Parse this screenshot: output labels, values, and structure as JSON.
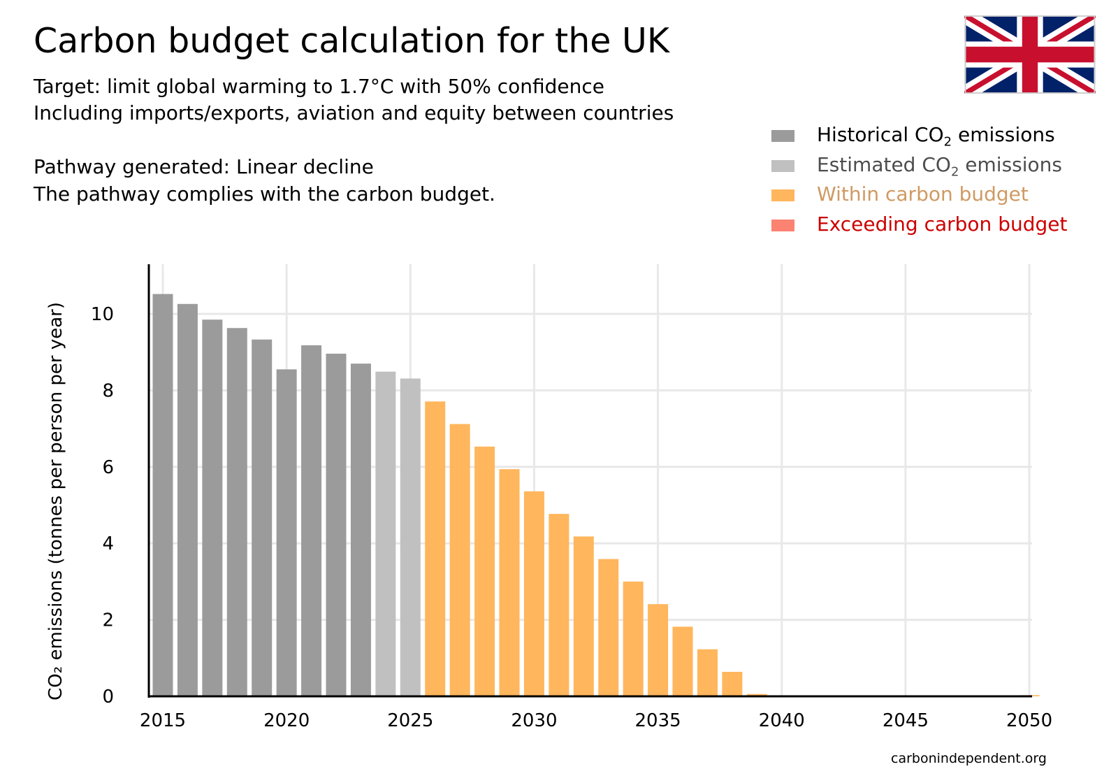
{
  "title": "Carbon budget calculation for the UK",
  "subtitle_lines": [
    "Target: limit global warming to 1.7°C with 50% confidence",
    "Including imports/exports, aviation and equity between countries",
    "Pathway generated: Linear decline",
    "The pathway complies with the carbon budget."
  ],
  "footer": "carbonindependent.org",
  "flag_icon": "union-jack-flag",
  "legend": [
    {
      "pre": "Historical CO",
      "sub": "2",
      "post": " emissions",
      "color": "#9b9b9b",
      "text_color": "#000000"
    },
    {
      "pre": "Estimated CO",
      "sub": "2",
      "post": " emissions",
      "color": "#c0c0c0",
      "text_color": "#4d4d4d"
    },
    {
      "pre": "Within carbon budget",
      "sub": "",
      "post": "",
      "color": "#ffb65c",
      "text_color": "#cf9a63"
    },
    {
      "pre": "Exceeding carbon budget",
      "sub": "",
      "post": "",
      "color": "#fc8272",
      "text_color": "#cc0000"
    }
  ],
  "chart_data": {
    "type": "bar",
    "title": "Carbon budget calculation for the UK",
    "ylabel": "CO₂ emissions (tonnes per person per year)",
    "xlabel": "",
    "ylim": [
      0,
      11.3
    ],
    "xlim": [
      2014.5,
      2050.5
    ],
    "grid": true,
    "legend_position": "top-right",
    "x_ticks": [
      "2015",
      "2020",
      "2025",
      "2030",
      "2035",
      "2040",
      "2045",
      "2050"
    ],
    "y_ticks": [
      "0",
      "2",
      "4",
      "6",
      "8",
      "10"
    ],
    "series": [
      {
        "name": "Historical CO2 emissions",
        "color": "#9b9b9b",
        "x": [
          2015,
          2016,
          2017,
          2018,
          2019,
          2020,
          2021,
          2022,
          2023
        ],
        "values": [
          10.52,
          10.26,
          9.85,
          9.63,
          9.33,
          8.55,
          9.18,
          8.96,
          8.7
        ]
      },
      {
        "name": "Estimated CO2 emissions",
        "color": "#c0c0c0",
        "x": [
          2024,
          2025
        ],
        "values": [
          8.49,
          8.31
        ]
      },
      {
        "name": "Within carbon budget",
        "color": "#ffb65c",
        "x": [
          2026,
          2027,
          2028,
          2029,
          2030,
          2031,
          2032,
          2033,
          2034,
          2035,
          2036,
          2037,
          2038,
          2039,
          2040,
          2041,
          2042,
          2043,
          2044,
          2045,
          2046,
          2047,
          2048,
          2049,
          2050
        ],
        "values": [
          7.71,
          7.12,
          6.53,
          5.94,
          5.36,
          4.77,
          4.18,
          3.59,
          3.0,
          2.41,
          1.82,
          1.23,
          0.64,
          0.06,
          0,
          0,
          0,
          0,
          0,
          0,
          0,
          0,
          0,
          0,
          0.03
        ]
      },
      {
        "name": "Exceeding carbon budget",
        "color": "#fc8272",
        "x": [],
        "values": []
      }
    ]
  }
}
